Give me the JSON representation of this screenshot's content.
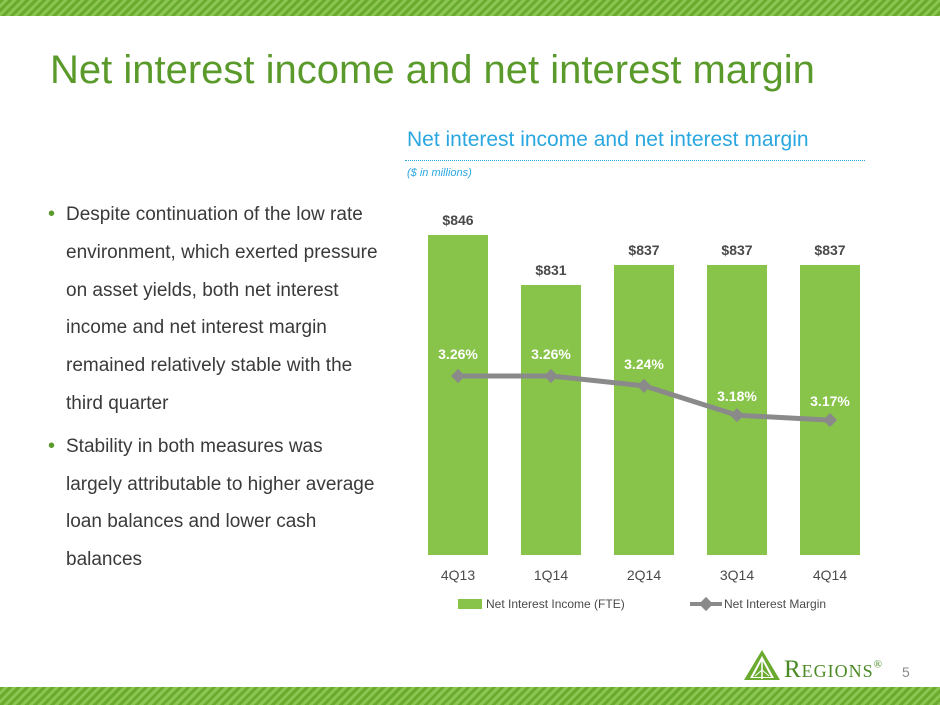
{
  "slide": {
    "title": "Net interest income and net interest margin",
    "page_number": "5",
    "accent_color": "#5a9a2a",
    "stripe_color": "#6aaa2e"
  },
  "bullets": [
    "Despite continuation of the low rate environment, which exerted pressure on asset yields, both net interest income and net interest margin remained relatively stable with the third quarter",
    "Stability in both measures was largely attributable to higher average loan balances and lower cash balances"
  ],
  "logo": {
    "text": "Regions",
    "mark": "®",
    "icon": "regions-leaf-icon"
  },
  "chart_data": {
    "type": "bar",
    "title": "Net interest income and net interest margin",
    "subtitle": "($ in millions)",
    "title_color": "#2aa7e0",
    "categories": [
      "4Q13",
      "1Q14",
      "2Q14",
      "3Q14",
      "4Q14"
    ],
    "series": [
      {
        "name": "Net Interest Income (FTE)",
        "type": "bar",
        "values": [
          846,
          831,
          837,
          837,
          837
        ],
        "labels": [
          "$846",
          "$831",
          "$837",
          "$837",
          "$837"
        ],
        "color": "#88c44a"
      },
      {
        "name": "Net Interest Margin",
        "type": "line",
        "values": [
          3.26,
          3.26,
          3.24,
          3.18,
          3.17
        ],
        "labels": [
          "3.26%",
          "3.26%",
          "3.24%",
          "3.18%",
          "3.17%"
        ],
        "color": "#8a8a8a"
      }
    ],
    "legend": "bottom",
    "grid": false
  }
}
